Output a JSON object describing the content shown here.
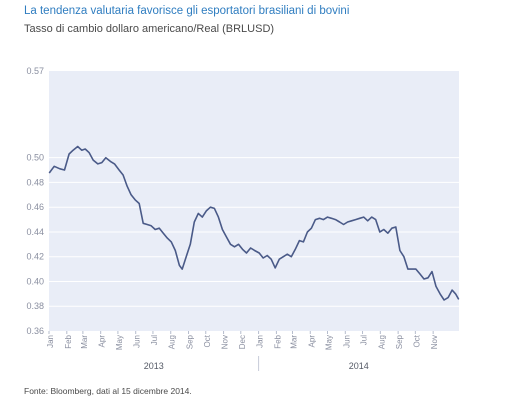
{
  "header": {
    "title": "La tendenza valutaria favorisce gli esportatori brasiliani di bovini",
    "subtitle": "Tasso di cambio dollaro americano/Real (BRLUSD)"
  },
  "footer": {
    "source": "Fonte: Bloomberg, dati al 15 dicembre 2014."
  },
  "colors": {
    "line": "#4a5a88",
    "plot_background": "#e9edf7",
    "grid": "#ffffff",
    "title": "#2f7dc0"
  },
  "chart_data": {
    "type": "line",
    "title": "",
    "xlabel": "",
    "ylabel": "",
    "ylim": [
      0.36,
      0.57
    ],
    "yticks": [
      "0.57",
      "0.50",
      "0.48",
      "0.46",
      "0.44",
      "0.42",
      "0.40",
      "0.38",
      "0.36"
    ],
    "xticks": [
      "Jan",
      "Feb",
      "Mar",
      "Apr",
      "May",
      "Jun",
      "Jul",
      "Aug",
      "Sep",
      "Oct",
      "Nov",
      "Dec",
      "Jan",
      "Feb",
      "Mar",
      "Apr",
      "May",
      "Jun",
      "Jul",
      "Aug",
      "Sep",
      "Oct",
      "Nov"
    ],
    "year_labels": [
      "2013",
      "2014"
    ],
    "grid": true,
    "series": [
      {
        "x": [
          "2013-01-02",
          "2013-01-10",
          "2013-01-20",
          "2013-01-28",
          "2013-02-05",
          "2013-02-12",
          "2013-02-20",
          "2013-02-27",
          "2013-03-05",
          "2013-03-12",
          "2013-03-19",
          "2013-03-27",
          "2013-04-03",
          "2013-04-10",
          "2013-04-18",
          "2013-04-25",
          "2013-05-03",
          "2013-05-10",
          "2013-05-17",
          "2013-05-24",
          "2013-05-31",
          "2013-06-07",
          "2013-06-14",
          "2013-06-21",
          "2013-06-28",
          "2013-07-05",
          "2013-07-12",
          "2013-07-19",
          "2013-07-26",
          "2013-08-02",
          "2013-08-09",
          "2013-08-16",
          "2013-08-21",
          "2013-08-28",
          "2013-09-04",
          "2013-09-11",
          "2013-09-18",
          "2013-09-25",
          "2013-10-02",
          "2013-10-09",
          "2013-10-16",
          "2013-10-23",
          "2013-10-30",
          "2013-11-06",
          "2013-11-13",
          "2013-11-20",
          "2013-11-27",
          "2013-12-04",
          "2013-12-11",
          "2013-12-18",
          "2013-12-25",
          "2014-01-02",
          "2014-01-09",
          "2014-01-16",
          "2014-01-23",
          "2014-01-30",
          "2014-02-06",
          "2014-02-13",
          "2014-02-20",
          "2014-02-27",
          "2014-03-06",
          "2014-03-13",
          "2014-03-20",
          "2014-03-27",
          "2014-04-03",
          "2014-04-10",
          "2014-04-17",
          "2014-04-24",
          "2014-05-01",
          "2014-05-08",
          "2014-05-15",
          "2014-05-22",
          "2014-05-29",
          "2014-06-05",
          "2014-06-12",
          "2014-06-19",
          "2014-06-26",
          "2014-07-03",
          "2014-07-10",
          "2014-07-17",
          "2014-07-24",
          "2014-07-31",
          "2014-08-07",
          "2014-08-14",
          "2014-08-21",
          "2014-08-28",
          "2014-09-04",
          "2014-09-11",
          "2014-09-18",
          "2014-09-25",
          "2014-10-02",
          "2014-10-09",
          "2014-10-16",
          "2014-10-23",
          "2014-10-30",
          "2014-11-06",
          "2014-11-13",
          "2014-11-20",
          "2014-11-27",
          "2014-12-04",
          "2014-12-10",
          "2014-12-15"
        ],
        "values": [
          0.488,
          0.493,
          0.491,
          0.49,
          0.503,
          0.506,
          0.509,
          0.506,
          0.507,
          0.504,
          0.498,
          0.495,
          0.496,
          0.5,
          0.497,
          0.495,
          0.49,
          0.486,
          0.477,
          0.47,
          0.466,
          0.463,
          0.447,
          0.446,
          0.445,
          0.442,
          0.443,
          0.439,
          0.435,
          0.432,
          0.425,
          0.413,
          0.41,
          0.42,
          0.43,
          0.448,
          0.455,
          0.452,
          0.457,
          0.46,
          0.459,
          0.452,
          0.442,
          0.436,
          0.43,
          0.428,
          0.43,
          0.426,
          0.423,
          0.427,
          0.425,
          0.423,
          0.419,
          0.421,
          0.418,
          0.411,
          0.418,
          0.42,
          0.422,
          0.42,
          0.426,
          0.433,
          0.432,
          0.44,
          0.443,
          0.45,
          0.451,
          0.45,
          0.452,
          0.451,
          0.45,
          0.448,
          0.446,
          0.448,
          0.449,
          0.45,
          0.451,
          0.452,
          0.449,
          0.452,
          0.45,
          0.44,
          0.442,
          0.439,
          0.443,
          0.444,
          0.425,
          0.42,
          0.41,
          0.41,
          0.41,
          0.406,
          0.402,
          0.403,
          0.408,
          0.396,
          0.39,
          0.385,
          0.387,
          0.393,
          0.39,
          0.386
        ]
      }
    ]
  }
}
